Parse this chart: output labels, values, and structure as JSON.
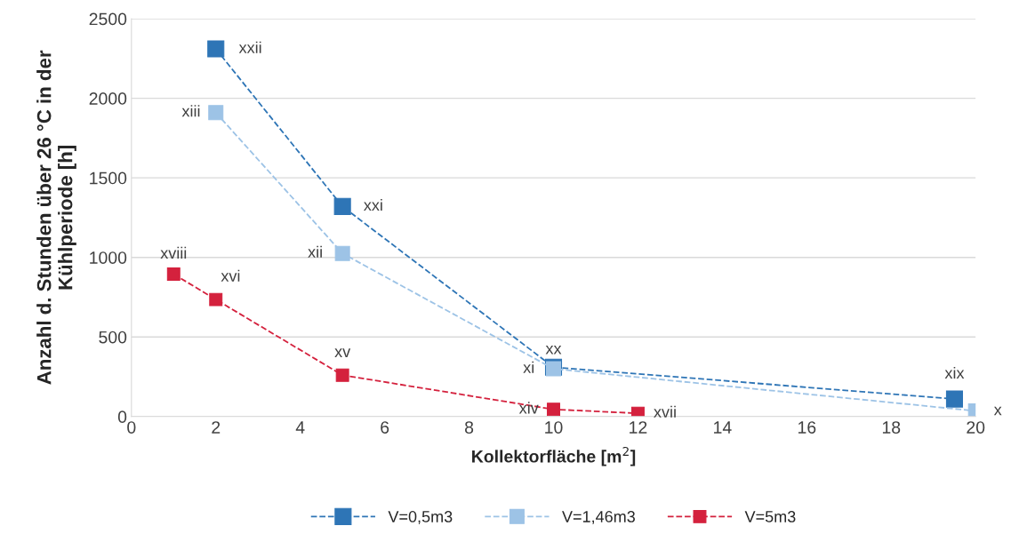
{
  "chart_data": {
    "type": "line",
    "xlabel": "Kollektorfläche [m$^{2}$]",
    "ylabel": "Anzahl d. Stunden über 26 °C in der\nKühlperiode [h]",
    "series": [
      {
        "name": "V=0,5m3",
        "color": "#2e75b6",
        "x": [
          2,
          5,
          10,
          19.5
        ],
        "values": [
          2310,
          1320,
          310,
          110
        ]
      },
      {
        "name": "V=1,46m3",
        "color": "#9dc3e6",
        "x": [
          2,
          5,
          10,
          20
        ],
        "values": [
          1910,
          1025,
          300,
          35
        ]
      },
      {
        "name": "V=5m3",
        "color": "#d4213d",
        "x": [
          1,
          2,
          5,
          10,
          12
        ],
        "values": [
          895,
          735,
          260,
          45,
          20
        ]
      }
    ],
    "annotations": [
      {
        "text": "xxii",
        "x": 2,
        "y": 2310
      },
      {
        "text": "xxi",
        "x": 5,
        "y": 1320
      },
      {
        "text": "xx",
        "x": 10,
        "y": 310
      },
      {
        "text": "xix",
        "x": 19.5,
        "y": 110
      },
      {
        "text": "xiii",
        "x": 2,
        "y": 1910
      },
      {
        "text": "xii",
        "x": 5,
        "y": 1025
      },
      {
        "text": "xi",
        "x": 10,
        "y": 300
      },
      {
        "text": "x",
        "x": 20,
        "y": 35
      },
      {
        "text": "xviii",
        "x": 1,
        "y": 895
      },
      {
        "text": "xvi",
        "x": 2,
        "y": 735
      },
      {
        "text": "xv",
        "x": 5,
        "y": 260
      },
      {
        "text": "xiv",
        "x": 10,
        "y": 45
      },
      {
        "text": "xvii",
        "x": 12,
        "y": 20
      }
    ],
    "xlim": [
      0,
      20
    ],
    "xticks": [
      0,
      2,
      4,
      6,
      8,
      10,
      12,
      14,
      16,
      18,
      20
    ],
    "ylim": [
      0,
      2500
    ],
    "yticks": [
      0,
      500,
      1000,
      1500,
      2000,
      2500
    ],
    "grid": "y",
    "legend": "bottom",
    "marker": "square",
    "line_style": "dashed"
  }
}
